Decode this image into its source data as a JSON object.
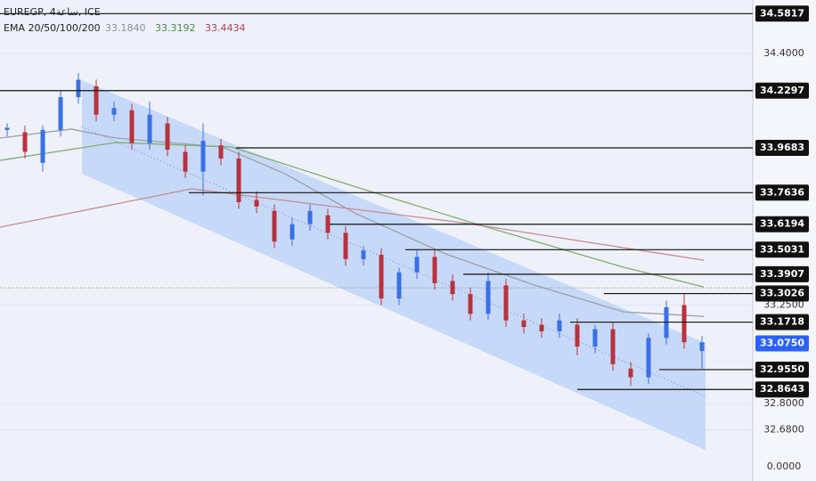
{
  "chart_data": {
    "type": "candlestick",
    "title": "EUREGP, 4ساعة, ICE",
    "indicator": {
      "name": "EMA 20/50/100/200",
      "values": [
        {
          "label": "33.1840",
          "color": "#8a8f98"
        },
        {
          "label": "33.3192",
          "color": "#4b8a3c"
        },
        {
          "label": "33.4434",
          "color": "#b0424b"
        }
      ]
    },
    "xlim": [
      -0.4,
      41.85
    ],
    "ylim": [
      32.446,
      34.644
    ],
    "yticks": [
      {
        "value": 34.4,
        "label": "34.4000"
      },
      {
        "value": 33.25,
        "label": "33.2500"
      },
      {
        "value": 32.8,
        "label": "32.8000"
      },
      {
        "value": 32.68,
        "label": "32.6800"
      }
    ],
    "lower_pane_label": "0.0000",
    "grid": true,
    "up_color": "#3a6fe8",
    "down_color": "#b8323e",
    "candles": {
      "open": [
        34.05,
        34.04,
        33.9,
        34.05,
        34.2,
        34.25,
        34.12,
        34.14,
        33.99,
        34.08,
        33.95,
        33.86,
        33.98,
        33.92,
        33.73,
        33.68,
        33.55,
        33.62,
        33.66,
        33.58,
        33.46,
        33.48,
        33.28,
        33.4,
        33.47,
        33.36,
        33.3,
        33.21,
        33.34,
        33.18,
        33.16,
        33.13,
        33.16,
        33.06,
        33.14,
        32.96,
        32.92,
        33.1,
        33.25,
        33.04
      ],
      "high": [
        34.08,
        34.07,
        34.07,
        34.23,
        34.31,
        34.28,
        34.18,
        34.17,
        34.18,
        34.11,
        33.98,
        34.08,
        34.01,
        33.95,
        33.77,
        33.71,
        33.65,
        33.71,
        33.69,
        33.61,
        33.52,
        33.51,
        33.42,
        33.5,
        33.5,
        33.39,
        33.33,
        33.4,
        33.37,
        33.21,
        33.19,
        33.21,
        33.19,
        33.16,
        33.17,
        32.99,
        33.12,
        33.27,
        33.3,
        33.11
      ],
      "low": [
        34.02,
        33.92,
        33.86,
        34.02,
        34.17,
        34.09,
        34.09,
        33.96,
        33.96,
        33.93,
        33.83,
        33.75,
        33.89,
        33.69,
        33.67,
        33.51,
        33.52,
        33.59,
        33.55,
        33.43,
        33.43,
        33.25,
        33.25,
        33.37,
        33.32,
        33.27,
        33.18,
        33.18,
        33.15,
        33.12,
        33.1,
        33.1,
        33.02,
        33.03,
        32.95,
        32.88,
        32.89,
        33.07,
        33.05,
        32.96
      ],
      "close": [
        34.06,
        33.95,
        34.05,
        34.2,
        34.28,
        34.12,
        34.15,
        33.99,
        34.12,
        33.96,
        33.86,
        34.0,
        33.92,
        33.72,
        33.7,
        33.54,
        33.62,
        33.68,
        33.58,
        33.46,
        33.5,
        33.28,
        33.4,
        33.47,
        33.35,
        33.3,
        33.21,
        33.36,
        33.18,
        33.15,
        33.13,
        33.18,
        33.06,
        33.14,
        32.98,
        32.92,
        33.1,
        33.24,
        33.08,
        33.08
      ]
    },
    "ema_lines": [
      {
        "color": "#9aa0a8",
        "x": [
          -0.4,
          3.6,
          6.1,
          12.1,
          15.6,
          19.6,
          24.6,
          29.6,
          34.6,
          39.1
        ],
        "values": [
          34.013,
          34.054,
          34.013,
          33.972,
          33.85,
          33.667,
          33.484,
          33.341,
          33.219,
          33.198
        ]
      },
      {
        "color": "#7fae6e",
        "x": [
          -0.4,
          6.1,
          12.6,
          19.6,
          26.1,
          34.6,
          39.1
        ],
        "values": [
          33.911,
          33.993,
          33.972,
          33.789,
          33.626,
          33.423,
          33.333
        ]
      },
      {
        "color": "#c98a8f",
        "x": [
          -0.4,
          10.35,
          25.6,
          39.1
        ],
        "values": [
          33.606,
          33.781,
          33.626,
          33.455
        ]
      }
    ],
    "channel": {
      "color": "#b9d0f7",
      "x": [
        4.2,
        39.2
      ],
      "upper": [
        34.277,
        33.076
      ],
      "lower": [
        33.85,
        32.588
      ]
    },
    "dotted_level": 33.329,
    "levels": [
      {
        "value": 34.5817,
        "label": "34.5817",
        "start": -0.4
      },
      {
        "value": 34.2297,
        "label": "34.2297",
        "start": -0.4
      },
      {
        "value": 33.9683,
        "label": "33.9683",
        "start": 12.85
      },
      {
        "value": 33.7636,
        "label": "33.7636",
        "start": 10.2
      },
      {
        "value": 33.6194,
        "label": "33.6194",
        "start": 18.1
      },
      {
        "value": 33.5031,
        "label": "33.5031",
        "start": 22.35
      },
      {
        "value": 33.3907,
        "label": "33.3907",
        "start": 25.6
      },
      {
        "value": 33.3026,
        "label": "33.3026",
        "start": 33.5
      },
      {
        "value": 33.1718,
        "label": "33.1718",
        "start": 31.6
      },
      {
        "value": 32.955,
        "label": "32.9550",
        "start": 36.6
      },
      {
        "value": 32.8643,
        "label": "32.8643",
        "start": 32.0
      }
    ],
    "last_price": {
      "value": 33.075,
      "label": "33.0750",
      "color": "#2962ff"
    }
  }
}
